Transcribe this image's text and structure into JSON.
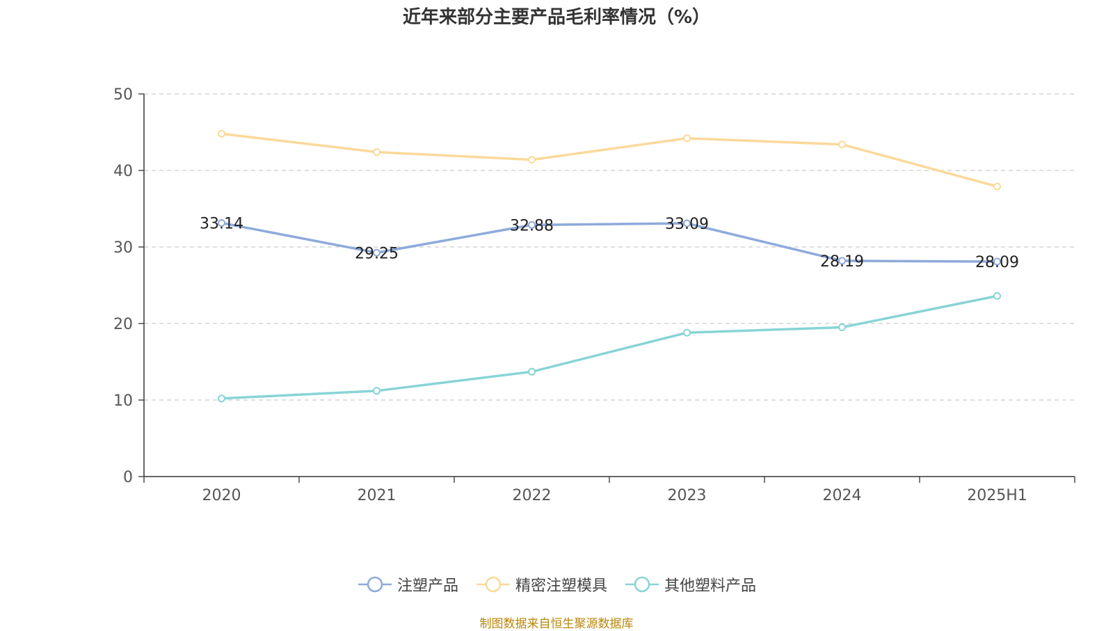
{
  "chart_data": {
    "type": "line",
    "title": "近年来部分主要产品毛利率情况（%）",
    "categories": [
      "2020",
      "2021",
      "2022",
      "2023",
      "2024",
      "2025H1"
    ],
    "ylim": [
      0,
      50
    ],
    "yticks": [
      0,
      10,
      20,
      30,
      40,
      50
    ],
    "grid": true,
    "legend_position": "bottom-center",
    "series": [
      {
        "name": "注塑产品",
        "color": "#8eaadb",
        "values": [
          33.14,
          29.25,
          32.88,
          33.09,
          28.19,
          28.09
        ],
        "labels": [
          "33.14",
          "29.25",
          "32.88",
          "33.09",
          "28.19",
          "28.09"
        ]
      },
      {
        "name": "精密注塑模具",
        "color": "#fbd99a",
        "values": [
          44.8,
          42.4,
          41.4,
          44.2,
          43.4,
          37.9
        ]
      },
      {
        "name": "其他塑料产品",
        "color": "#88d4d6",
        "values": [
          10.2,
          11.2,
          13.7,
          18.8,
          19.5,
          23.6
        ]
      }
    ]
  },
  "source": "制图数据来自恒生聚源数据库"
}
